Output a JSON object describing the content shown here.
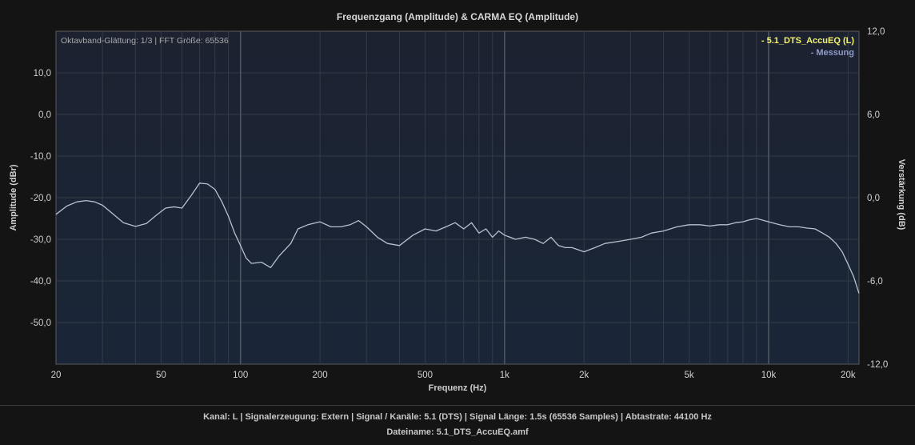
{
  "chart_data": {
    "type": "line",
    "title": "Frequenzgang (Amplitude) & CARMA EQ (Amplitude)",
    "info": "Oktavband-Glättung: 1/3 | FFT Größe: 65536",
    "xlabel": "Frequenz (Hz)",
    "ylabel": "Amplitude (dBr)",
    "y2label": "Verstärkung (dB)",
    "x_scale": "log",
    "xlim": [
      20,
      22000
    ],
    "ylim": [
      -60,
      20
    ],
    "y2lim": [
      -12,
      12
    ],
    "grid": true,
    "x_ticks": [
      20,
      50,
      100,
      200,
      500,
      1000,
      2000,
      5000,
      10000,
      20000
    ],
    "x_tick_labels": [
      "20",
      "50",
      "100",
      "200",
      "500",
      "1k",
      "2k",
      "5k",
      "10k",
      "20k"
    ],
    "y_ticks": [
      10,
      0,
      -10,
      -20,
      -30,
      -40,
      -50
    ],
    "y_tick_labels": [
      "10,0",
      "0,0",
      "-10,0",
      "-20,0",
      "-30,0",
      "-40,0",
      "-50,0"
    ],
    "y2_ticks": [
      12,
      6,
      0,
      -6,
      -12
    ],
    "y2_tick_labels": [
      "12,0",
      "6,0",
      "0,0",
      "-6,0",
      "-12,0"
    ],
    "legend": {
      "placement": "top-right",
      "entries": [
        {
          "label": "- 5.1_DTS_AccuEQ (L)",
          "color": "#f3f36b"
        },
        {
          "label": "- Messung",
          "color": "#8e9bc8"
        }
      ]
    },
    "series": [
      {
        "color": "#b9c0d0",
        "x": [
          20,
          22,
          24,
          26,
          28,
          30,
          33,
          36,
          40,
          44,
          48,
          52,
          56,
          60,
          65,
          70,
          75,
          80,
          85,
          90,
          95,
          100,
          105,
          110,
          120,
          130,
          140,
          155,
          165,
          180,
          200,
          220,
          240,
          260,
          280,
          300,
          330,
          360,
          400,
          450,
          500,
          550,
          600,
          650,
          700,
          750,
          800,
          850,
          900,
          950,
          1000,
          1100,
          1200,
          1300,
          1400,
          1500,
          1600,
          1700,
          1800,
          2000,
          2200,
          2400,
          2700,
          3000,
          3300,
          3600,
          4000,
          4500,
          5000,
          5500,
          6000,
          6500,
          7000,
          7500,
          8000,
          8500,
          9000,
          10000,
          11000,
          12000,
          13000,
          14000,
          15000,
          16000,
          17000,
          18000,
          19000,
          20000,
          21000,
          22000
        ],
        "values": [
          -24.0,
          -22.0,
          -21.0,
          -20.7,
          -21.0,
          -21.8,
          -24.0,
          -26.0,
          -26.9,
          -26.2,
          -24.2,
          -22.5,
          -22.2,
          -22.5,
          -19.5,
          -16.5,
          -16.7,
          -18.0,
          -21.0,
          -24.5,
          -28.5,
          -31.5,
          -34.5,
          -35.8,
          -35.5,
          -36.8,
          -34.0,
          -31.0,
          -27.5,
          -26.5,
          -25.8,
          -27.0,
          -27.0,
          -26.5,
          -25.5,
          -27.0,
          -29.5,
          -31.0,
          -31.5,
          -29.0,
          -27.5,
          -28.0,
          -27.0,
          -26.0,
          -27.5,
          -26.0,
          -28.5,
          -27.5,
          -29.5,
          -28.0,
          -29.0,
          -30.0,
          -29.5,
          -30.0,
          -31.0,
          -29.5,
          -31.5,
          -32.0,
          -32.0,
          -33.0,
          -32.0,
          -31.0,
          -30.5,
          -30.0,
          -29.5,
          -28.5,
          -28.0,
          -27.0,
          -26.5,
          -26.5,
          -26.8,
          -26.5,
          -26.5,
          -26.0,
          -25.8,
          -25.3,
          -25.0,
          -25.8,
          -26.5,
          -27.0,
          -27.0,
          -27.3,
          -27.5,
          -28.5,
          -29.5,
          -31.0,
          -33.0,
          -36.0,
          -39.0,
          -43.0
        ]
      }
    ]
  },
  "footer": {
    "line1": "Kanal: L  |  Signalerzeugung: Extern   |  Signal / Kanäle: 5.1 (DTS)  |  Signal Länge: 1.5s (65536 Samples)  |  Abtastrate: 44100 Hz",
    "line2": "Dateiname: 5.1_DTS_AccuEQ.amf"
  }
}
